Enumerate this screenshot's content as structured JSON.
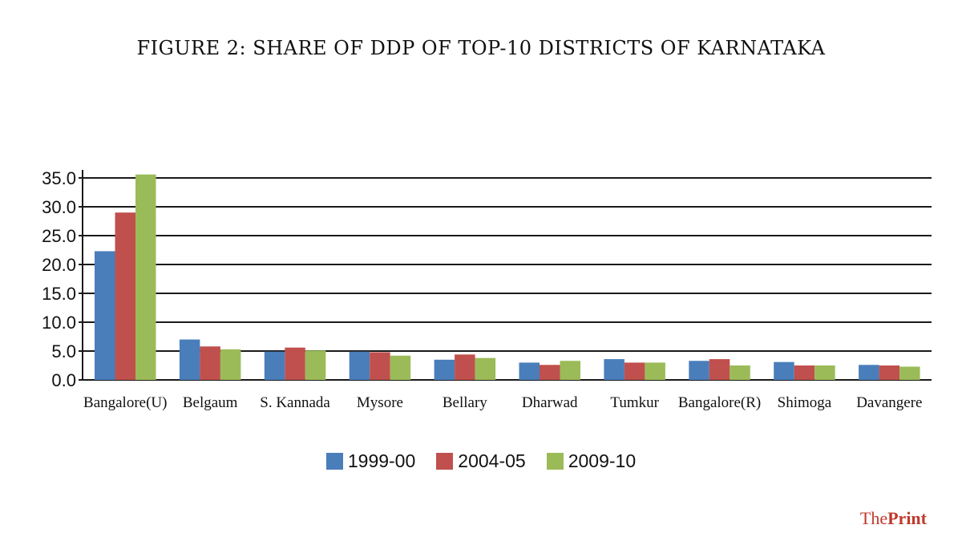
{
  "chart_data": {
    "type": "bar",
    "title": "FIGURE 2: SHARE OF DDP OF TOP-10 DISTRICTS OF KARNATAKA",
    "categories": [
      "Bangalore(U)",
      "Belgaum",
      "S. Kannada",
      "Mysore",
      "Bellary",
      "Dharwad",
      "Tumkur",
      "Bangalore(R)",
      "Shimoga",
      "Davangere"
    ],
    "series": [
      {
        "name": "1999-00",
        "color": "#4a7ebb",
        "values": [
          22.3,
          7.0,
          4.9,
          4.9,
          3.5,
          3.0,
          3.6,
          3.3,
          3.1,
          2.6
        ]
      },
      {
        "name": "2004-05",
        "color": "#c0504d",
        "values": [
          29.0,
          5.8,
          5.6,
          4.8,
          4.4,
          2.6,
          3.0,
          3.6,
          2.5,
          2.5
        ]
      },
      {
        "name": "2009-10",
        "color": "#9bbb59",
        "values": [
          35.6,
          5.3,
          5.1,
          4.2,
          3.8,
          3.3,
          3.0,
          2.5,
          2.5,
          2.3
        ]
      }
    ],
    "ylim": [
      0,
      35
    ],
    "yticks": [
      "0.0",
      "5.0",
      "10.0",
      "15.0",
      "20.0",
      "25.0",
      "30.0",
      "35.0"
    ],
    "xlabel": "",
    "ylabel": "",
    "grid": true,
    "legend": "bottom"
  },
  "brand": {
    "part1": "The",
    "part2": "Print"
  }
}
